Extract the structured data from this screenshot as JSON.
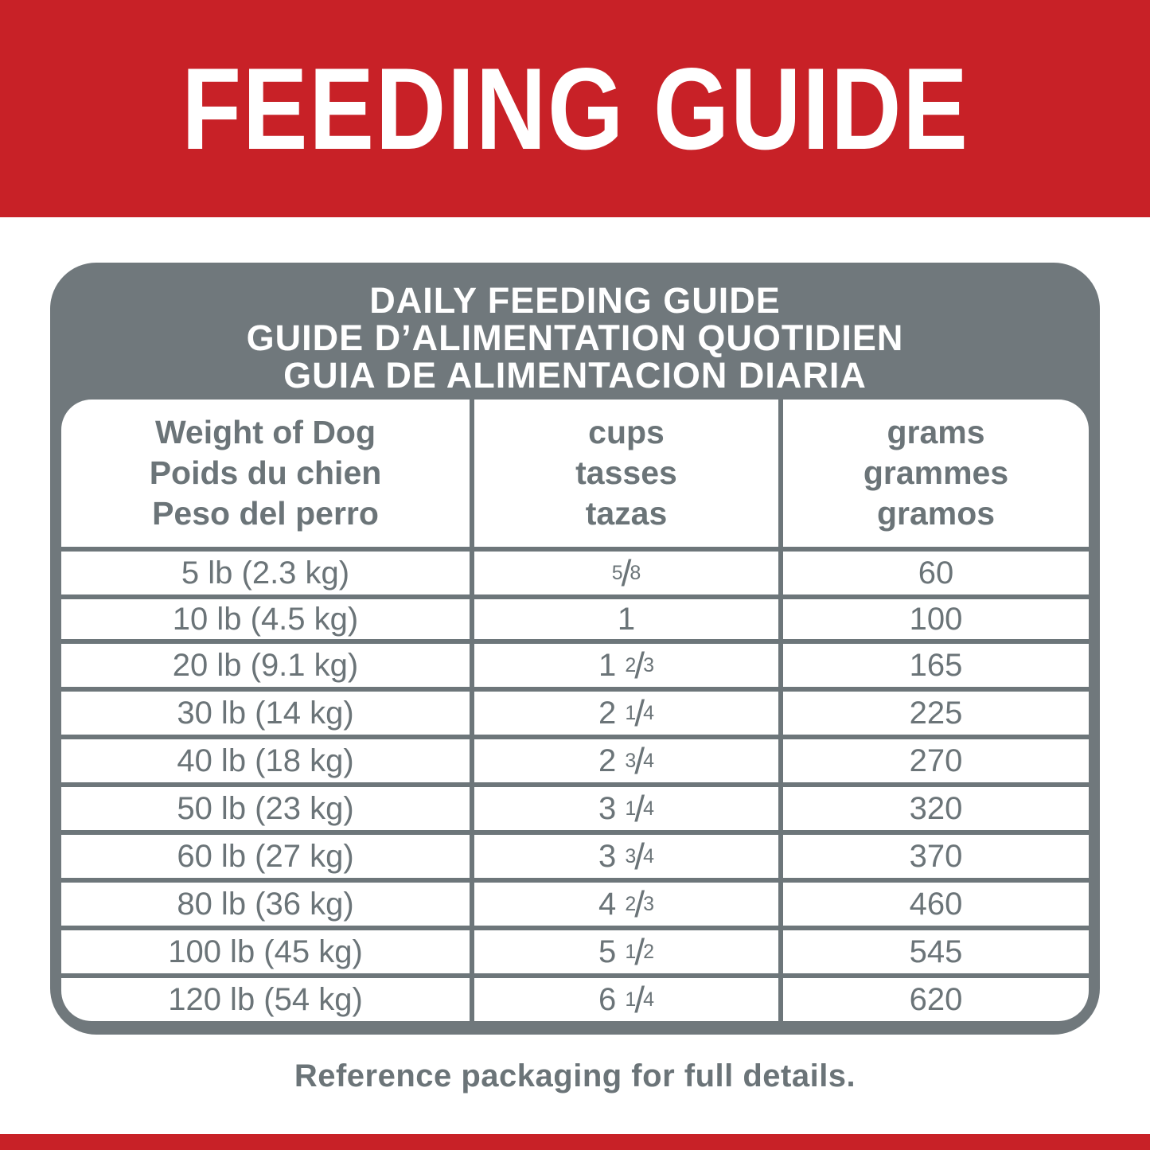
{
  "banner": {
    "title": "FEEDING GUIDE"
  },
  "card": {
    "title_line1": "DAILY FEEDING GUIDE",
    "title_line2": "GUIDE D’ALIMENTATION QUOTIDIEN",
    "title_line3": "GUIA DE ALIMENTACION DIARIA"
  },
  "table": {
    "headers": {
      "weight": [
        "Weight of Dog",
        "Poids du chien",
        "Peso del perro"
      ],
      "cups": [
        "cups",
        "tasses",
        "tazas"
      ],
      "grams": [
        "grams",
        "grammes",
        "gramos"
      ]
    },
    "rows": [
      {
        "weight": "5 lb (2.3 kg)",
        "cups_whole": "",
        "cups_num": "5",
        "cups_den": "8",
        "grams": "60"
      },
      {
        "weight": "10 lb (4.5 kg)",
        "cups_whole": "1",
        "cups_num": "",
        "cups_den": "",
        "grams": "100"
      },
      {
        "weight": "20 lb (9.1 kg)",
        "cups_whole": "1",
        "cups_num": "2",
        "cups_den": "3",
        "grams": "165"
      },
      {
        "weight": "30 lb (14 kg)",
        "cups_whole": "2",
        "cups_num": "1",
        "cups_den": "4",
        "grams": "225"
      },
      {
        "weight": "40 lb (18 kg)",
        "cups_whole": "2",
        "cups_num": "3",
        "cups_den": "4",
        "grams": "270"
      },
      {
        "weight": "50 lb (23 kg)",
        "cups_whole": "3",
        "cups_num": "1",
        "cups_den": "4",
        "grams": "320"
      },
      {
        "weight": "60 lb (27 kg)",
        "cups_whole": "3",
        "cups_num": "3",
        "cups_den": "4",
        "grams": "370"
      },
      {
        "weight": "80 lb (36 kg)",
        "cups_whole": "4",
        "cups_num": "2",
        "cups_den": "3",
        "grams": "460"
      },
      {
        "weight": "100 lb (45 kg)",
        "cups_whole": "5",
        "cups_num": "1",
        "cups_den": "2",
        "grams": "545"
      },
      {
        "weight": "120 lb (54 kg)",
        "cups_whole": "6",
        "cups_num": "1",
        "cups_den": "4",
        "grams": "620"
      }
    ]
  },
  "footer": {
    "note": "Reference packaging for full details."
  },
  "colors": {
    "brand_red": "#c82127",
    "card_gray": "#70787c",
    "grid_line": "#6d767a",
    "text_gray": "#6b7478"
  },
  "chart_data": {
    "type": "table",
    "title": "DAILY FEEDING GUIDE / GUIDE D’ALIMENTATION QUOTIDIEN / GUIA DE ALIMENTACION DIARIA",
    "columns": [
      "Weight of Dog",
      "cups",
      "grams"
    ],
    "rows": [
      [
        "5 lb (2.3 kg)",
        "5/8",
        60
      ],
      [
        "10 lb (4.5 kg)",
        "1",
        100
      ],
      [
        "20 lb (9.1 kg)",
        "1 2/3",
        165
      ],
      [
        "30 lb (14 kg)",
        "2 1/4",
        225
      ],
      [
        "40 lb (18 kg)",
        "2 3/4",
        270
      ],
      [
        "50 lb (23 kg)",
        "3 1/4",
        320
      ],
      [
        "60 lb (27 kg)",
        "3 3/4",
        370
      ],
      [
        "80 lb (36 kg)",
        "4 2/3",
        460
      ],
      [
        "100 lb (45 kg)",
        "5 1/2",
        545
      ],
      [
        "120 lb (54 kg)",
        "6 1/4",
        620
      ]
    ]
  }
}
